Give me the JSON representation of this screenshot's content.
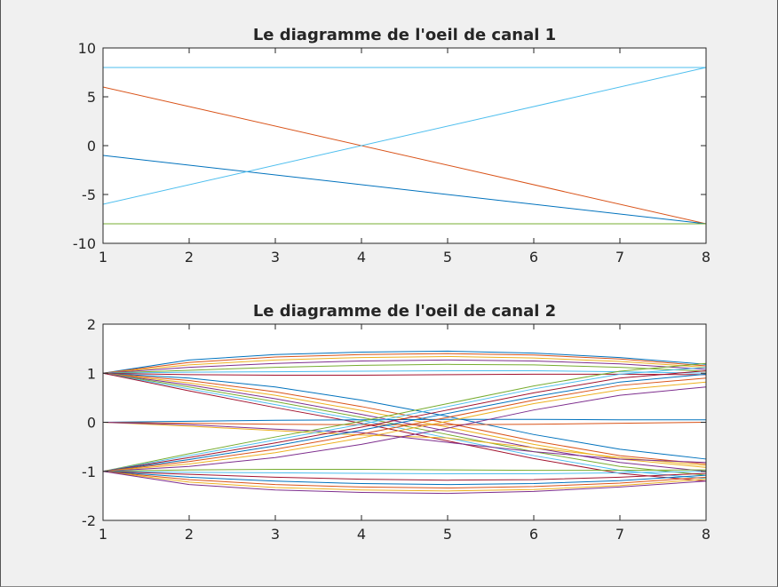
{
  "window": {
    "background": "#f0f0f0"
  },
  "chart_data": [
    {
      "type": "line",
      "title": "Le diagramme de l'oeil de canal 1",
      "xlabel": "",
      "ylabel": "",
      "xlim": [
        1,
        8
      ],
      "ylim": [
        -10,
        10
      ],
      "xticks": [
        1,
        2,
        3,
        4,
        5,
        6,
        7,
        8
      ],
      "yticks": [
        10,
        5,
        0,
        -5,
        -10
      ],
      "grid": false,
      "series": [
        {
          "color": "#4DBEEE",
          "x": [
            1,
            8
          ],
          "y": [
            8,
            8
          ]
        },
        {
          "color": "#D95319",
          "x": [
            1,
            8
          ],
          "y": [
            6,
            -8
          ]
        },
        {
          "color": "#0072BD",
          "x": [
            1,
            8
          ],
          "y": [
            -1,
            -8
          ]
        },
        {
          "color": "#4DBEEE",
          "x": [
            1,
            8
          ],
          "y": [
            -6,
            8
          ]
        },
        {
          "color": "#77AC30",
          "x": [
            1,
            8
          ],
          "y": [
            -8,
            -8
          ]
        }
      ]
    },
    {
      "type": "line",
      "title": "Le diagramme de l'oeil de canal 2",
      "xlabel": "",
      "ylabel": "",
      "xlim": [
        1,
        8
      ],
      "ylim": [
        -2,
        2
      ],
      "xticks": [
        1,
        2,
        3,
        4,
        5,
        6,
        7,
        8
      ],
      "yticks": [
        2,
        1,
        0,
        -1,
        -2
      ],
      "grid": false,
      "palette": [
        "#0072BD",
        "#D95319",
        "#EDB120",
        "#7E2F8E",
        "#77AC30",
        "#4DBEEE",
        "#A2142F"
      ],
      "x": [
        1,
        2,
        3,
        4,
        5,
        6,
        7,
        8
      ],
      "series": [
        {
          "y": [
            1,
            1.27,
            1.38,
            1.43,
            1.45,
            1.41,
            1.32,
            1.18
          ]
        },
        {
          "y": [
            1,
            1.22,
            1.33,
            1.38,
            1.4,
            1.37,
            1.29,
            1.15
          ]
        },
        {
          "y": [
            1,
            1.17,
            1.27,
            1.32,
            1.34,
            1.31,
            1.24,
            1.12
          ]
        },
        {
          "y": [
            1,
            1.12,
            1.2,
            1.25,
            1.27,
            1.25,
            1.19,
            1.08
          ]
        },
        {
          "y": [
            1,
            1.06,
            1.12,
            1.16,
            1.18,
            1.17,
            1.12,
            1.04
          ]
        },
        {
          "y": [
            1,
            1.02,
            1.03,
            1.04,
            1.05,
            1.05,
            1.03,
            1.0
          ]
        },
        {
          "y": [
            1,
            0.97,
            0.96,
            0.96,
            0.97,
            0.98,
            0.98,
            0.97
          ]
        },
        {
          "y": [
            1,
            0.9,
            0.72,
            0.45,
            0.12,
            -0.25,
            -0.55,
            -0.75
          ]
        },
        {
          "y": [
            1,
            0.85,
            0.62,
            0.32,
            -0.02,
            -0.38,
            -0.68,
            -0.85
          ]
        },
        {
          "y": [
            1,
            0.8,
            0.55,
            0.24,
            -0.1,
            -0.45,
            -0.75,
            -0.92
          ]
        },
        {
          "y": [
            1,
            0.76,
            0.48,
            0.16,
            -0.18,
            -0.52,
            -0.82,
            -1.0
          ]
        },
        {
          "y": [
            1,
            0.72,
            0.42,
            0.1,
            -0.25,
            -0.6,
            -0.9,
            -1.08
          ]
        },
        {
          "y": [
            1,
            0.68,
            0.36,
            0.04,
            -0.32,
            -0.68,
            -0.98,
            -1.15
          ]
        },
        {
          "y": [
            1,
            0.64,
            0.3,
            -0.02,
            -0.38,
            -0.74,
            -1.04,
            -1.2
          ]
        },
        {
          "y": [
            0,
            0.02,
            0.04,
            0.05,
            0.06,
            0.06,
            0.05,
            0.05
          ]
        },
        {
          "y": [
            0,
            -0.02,
            -0.04,
            -0.05,
            -0.05,
            -0.04,
            -0.02,
            0.0
          ]
        },
        {
          "y": [
            0,
            -0.08,
            -0.17,
            -0.26,
            -0.32,
            -0.52,
            -0.72,
            -0.88
          ]
        },
        {
          "y": [
            0,
            -0.05,
            -0.14,
            -0.21,
            -0.41,
            -0.6,
            -0.75,
            -0.82
          ]
        },
        {
          "y": [
            -1,
            -0.64,
            -0.3,
            0.02,
            0.38,
            0.74,
            1.04,
            1.2
          ]
        },
        {
          "y": [
            -1,
            -0.68,
            -0.36,
            -0.04,
            0.32,
            0.68,
            0.98,
            1.12
          ]
        },
        {
          "y": [
            -1,
            -0.72,
            -0.42,
            -0.1,
            0.25,
            0.6,
            0.9,
            1.05
          ]
        },
        {
          "y": [
            -1,
            -0.76,
            -0.48,
            -0.16,
            0.18,
            0.52,
            0.82,
            0.98
          ]
        },
        {
          "y": [
            -1,
            -0.8,
            -0.55,
            -0.24,
            0.1,
            0.45,
            0.75,
            0.9
          ]
        },
        {
          "y": [
            -1,
            -0.85,
            -0.62,
            -0.32,
            0.02,
            0.38,
            0.66,
            0.82
          ]
        },
        {
          "y": [
            -1,
            -0.9,
            -0.72,
            -0.45,
            -0.12,
            0.25,
            0.55,
            0.72
          ]
        },
        {
          "y": [
            -1,
            -0.97,
            -0.96,
            -0.96,
            -0.97,
            -0.98,
            -0.98,
            -0.97
          ]
        },
        {
          "y": [
            -1,
            -1.02,
            -1.03,
            -1.04,
            -1.05,
            -1.05,
            -1.03,
            -1.0
          ]
        },
        {
          "y": [
            -1,
            -1.06,
            -1.12,
            -1.16,
            -1.18,
            -1.17,
            -1.12,
            -1.04
          ]
        },
        {
          "y": [
            -1,
            -1.12,
            -1.2,
            -1.25,
            -1.27,
            -1.25,
            -1.19,
            -1.08
          ]
        },
        {
          "y": [
            -1,
            -1.17,
            -1.27,
            -1.32,
            -1.34,
            -1.31,
            -1.24,
            -1.12
          ]
        },
        {
          "y": [
            -1,
            -1.22,
            -1.33,
            -1.38,
            -1.4,
            -1.37,
            -1.29,
            -1.16
          ]
        },
        {
          "y": [
            -1,
            -1.27,
            -1.38,
            -1.43,
            -1.45,
            -1.41,
            -1.32,
            -1.2
          ]
        }
      ]
    }
  ]
}
